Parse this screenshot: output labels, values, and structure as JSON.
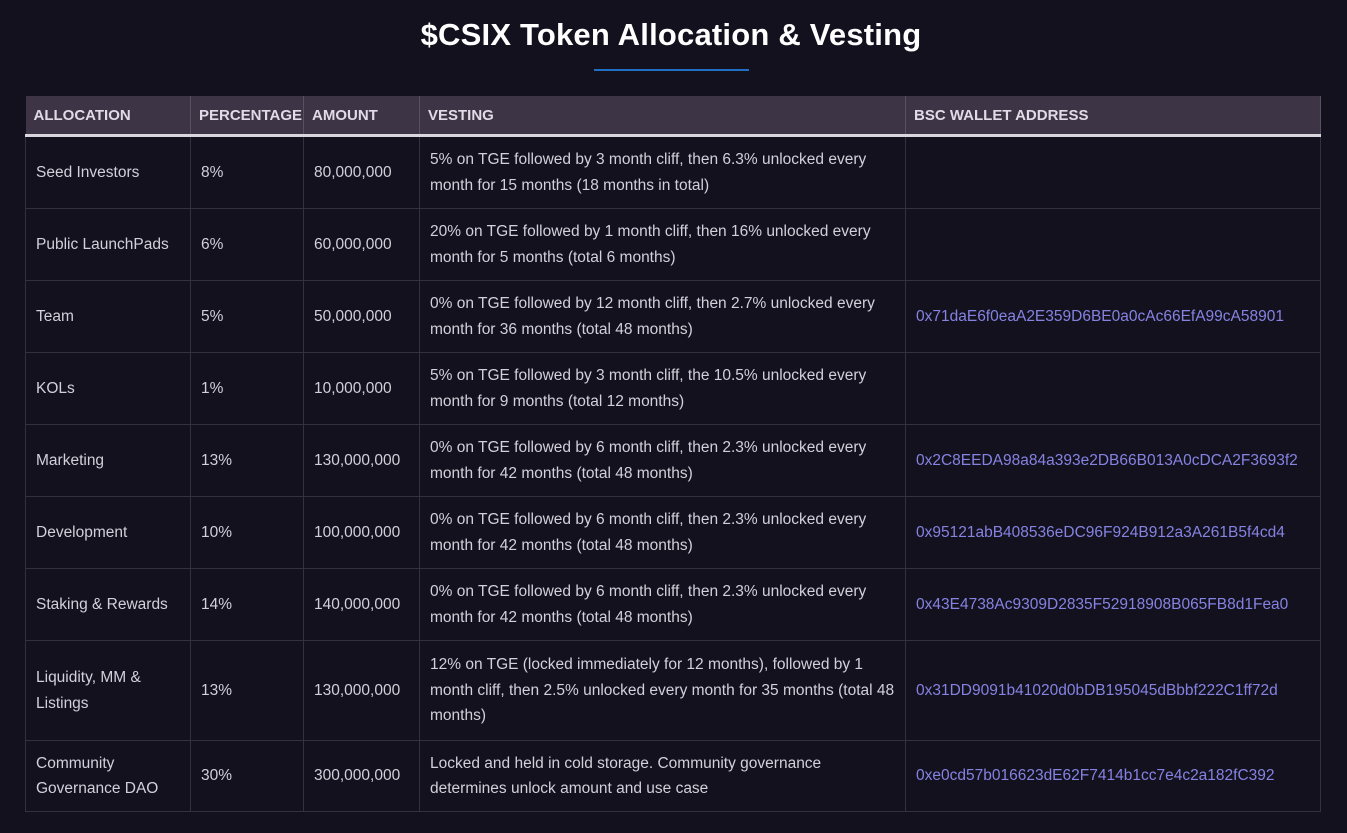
{
  "title": "$CSIX Token Allocation & Vesting",
  "colors": {
    "background": "#13111e",
    "header": "#3d3446",
    "accent_underline": "#1f6fc4",
    "address": "#8583e2"
  },
  "table": {
    "headers": [
      "ALLOCATION",
      "PERCENTAGE",
      "AMOUNT",
      "VESTING",
      "BSC WALLET ADDRESS"
    ],
    "rows": [
      {
        "allocation": "Seed Investors",
        "percentage": "8%",
        "amount": "80,000,000",
        "vesting": "5% on TGE followed by 3 month cliff, then 6.3% unlocked every month for 15 months (18 months in total)",
        "address": ""
      },
      {
        "allocation": "Public LaunchPads",
        "percentage": "6%",
        "amount": "60,000,000",
        "vesting": "20% on TGE followed by 1 month cliff, then 16% unlocked every month for 5 months (total 6 months)",
        "address": ""
      },
      {
        "allocation": "Team",
        "percentage": "5%",
        "amount": "50,000,000",
        "vesting": "0% on TGE followed by 12 month cliff, then 2.7% unlocked every month for 36 months (total 48 months)",
        "address": "0x71daE6f0eaA2E359D6BE0a0cAc66EfA99cA58901"
      },
      {
        "allocation": "KOLs",
        "percentage": "1%",
        "amount": "10,000,000",
        "vesting": "5% on TGE followed by 3 month cliff, the 10.5% unlocked every month for 9 months (total 12 months)",
        "address": ""
      },
      {
        "allocation": "Marketing",
        "percentage": "13%",
        "amount": "130,000,000",
        "vesting": "0% on TGE followed by 6 month cliff, then 2.3% unlocked every month for 42 months (total 48 months)",
        "address": "0x2C8EEDA98a84a393e2DB66B013A0cDCA2F3693f2"
      },
      {
        "allocation": "Development",
        "percentage": "10%",
        "amount": "100,000,000",
        "vesting": "0% on TGE followed by 6 month cliff, then 2.3% unlocked every month for 42 months (total 48 months)",
        "address": "0x95121abB408536eDC96F924B912a3A261B5f4cd4"
      },
      {
        "allocation": "Staking & Rewards",
        "percentage": "14%",
        "amount": "140,000,000",
        "vesting": "0% on TGE followed by 6 month cliff, then 2.3% unlocked every month for 42 months (total 48 months)",
        "address": "0x43E4738Ac9309D2835F52918908B065FB8d1Fea0"
      },
      {
        "allocation": "Liquidity, MM & Listings",
        "percentage": "13%",
        "amount": "130,000,000",
        "vesting": "12% on TGE (locked immediately for 12 months), followed by 1 month cliff, then 2.5% unlocked every month for 35 months (total 48 months)",
        "address": "0x31DD9091b41020d0bDB195045dBbbf222C1ff72d"
      },
      {
        "allocation": "Community Governance DAO",
        "percentage": "30%",
        "amount": "300,000,000",
        "vesting": "Locked and held in cold storage. Community governance determines unlock amount and use case",
        "address": "0xe0cd57b016623dE62F7414b1cc7e4c2a182fC392"
      }
    ]
  }
}
